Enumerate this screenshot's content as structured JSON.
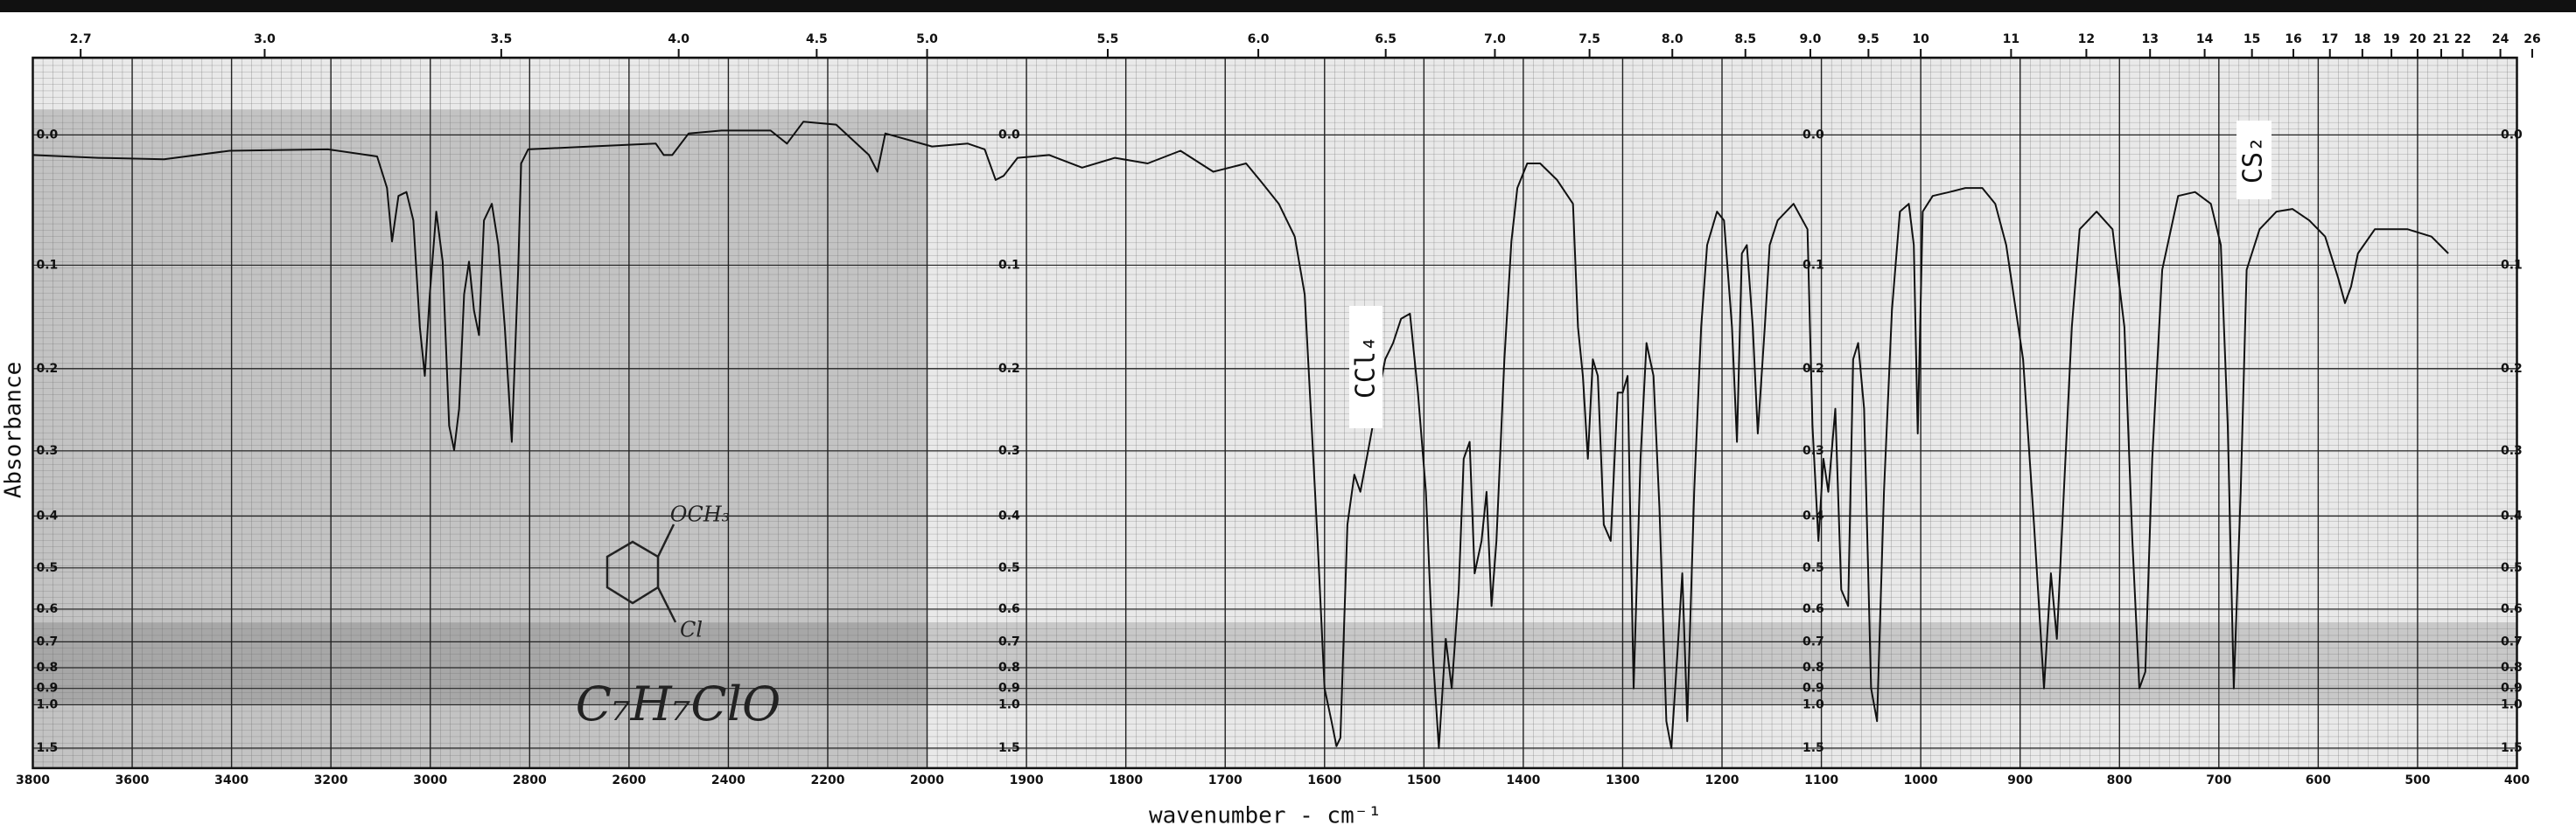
{
  "chart_data": {
    "type": "line",
    "xlabel": "wavenumber - cm⁻¹",
    "ylabel": "Absorbance",
    "yscale": "absorbance",
    "grid": true,
    "annotations": [
      "CCl₄",
      "CS₂",
      "C₇H₇ClO",
      "OCH₃",
      "Cl"
    ],
    "xlim": [
      3800,
      400
    ],
    "xticks": [
      3800,
      3600,
      3400,
      3200,
      3000,
      2800,
      2600,
      2400,
      2200,
      2000,
      1900,
      1800,
      1700,
      1600,
      1500,
      1400,
      1300,
      1200,
      1100,
      1000,
      900,
      800,
      700,
      600,
      500,
      400
    ],
    "x2lim": [
      2.63,
      26
    ],
    "x2ticks": [
      2.7,
      {
        "value": 3,
        "label": "3.0"
      },
      3.5,
      {
        "value": 4,
        "label": "4.0"
      },
      4.5,
      {
        "value": 5,
        "label": "5.0"
      },
      5.5,
      {
        "value": 6,
        "label": "6.0"
      },
      6.5,
      {
        "value": 7,
        "label": "7.0"
      },
      7.5,
      {
        "value": 8,
        "label": "8.0"
      },
      8.5,
      {
        "value": 9,
        "label": "9.0"
      },
      9.5,
      10,
      11,
      12,
      13,
      14,
      15,
      16,
      17,
      18,
      19,
      20,
      21,
      22,
      24,
      26
    ],
    "ylim": [
      -0.05,
      1.5
    ],
    "yticks": [
      {
        "value": 0,
        "label": "0.0"
      },
      0.1,
      0.2,
      0.3,
      0.4,
      0.5,
      0.6,
      0.7,
      0.8,
      0.9,
      {
        "value": 1,
        "label": "1.0"
      },
      1.5
    ],
    "x": [
      3800,
      3668,
      3536,
      3404,
      3206,
      3107,
      3087,
      3077,
      3064,
      3048,
      3034,
      3021,
      3011,
      3001,
      2988,
      2975,
      2962,
      2952,
      2942,
      2932,
      2922,
      2912,
      2902,
      2892,
      2876,
      2863,
      2850,
      2836,
      2823,
      2817,
      2803,
      2678,
      2546,
      2530,
      2513,
      2480,
      2414,
      2315,
      2282,
      2249,
      2183,
      2117,
      2100,
      2084,
      1995,
      1959,
      1942,
      1931,
      1923,
      1909,
      1877,
      1844,
      1811,
      1778,
      1745,
      1712,
      1679,
      1663,
      1646,
      1630,
      1620,
      1613,
      1607,
      1600,
      1593,
      1588,
      1584,
      1577,
      1570,
      1564,
      1556,
      1547,
      1539,
      1531,
      1523,
      1514,
      1506,
      1498,
      1491,
      1485,
      1478,
      1472,
      1465,
      1460,
      1454,
      1449,
      1442,
      1437,
      1432,
      1427,
      1419,
      1412,
      1406,
      1396,
      1383,
      1366,
      1350,
      1345,
      1340,
      1335,
      1330,
      1325,
      1319,
      1312,
      1305,
      1300,
      1295,
      1289,
      1282,
      1276,
      1269,
      1263,
      1256,
      1251,
      1245,
      1240,
      1235,
      1228,
      1221,
      1215,
      1205,
      1198,
      1190,
      1185,
      1180,
      1175,
      1169,
      1164,
      1157,
      1152,
      1144,
      1128,
      1114,
      1109,
      1103,
      1098,
      1093,
      1086,
      1080,
      1073,
      1068,
      1063,
      1057,
      1050,
      1044,
      1037,
      1029,
      1021,
      1012,
      1007,
      1003,
      998,
      988,
      971,
      955,
      938,
      925,
      914,
      897,
      886,
      876,
      869,
      863,
      856,
      848,
      840,
      823,
      807,
      795,
      787,
      780,
      774,
      767,
      757,
      741,
      724,
      708,
      698,
      691,
      685,
      678,
      672,
      659,
      642,
      626,
      609,
      593,
      580,
      573,
      567,
      560,
      543,
      510,
      486,
      469
    ],
    "series": [
      {
        "color": "#111111",
        "values": [
          0.014,
          0.016,
          0.017,
          0.011,
          0.01,
          0.015,
          0.038,
          0.08,
          0.044,
          0.041,
          0.063,
          0.157,
          0.208,
          0.126,
          0.056,
          0.097,
          0.267,
          0.299,
          0.246,
          0.126,
          0.097,
          0.141,
          0.165,
          0.063,
          0.05,
          0.083,
          0.157,
          0.288,
          0.104,
          0.02,
          0.01,
          0.008,
          0.006,
          0.014,
          0.014,
          -0.001,
          -0.003,
          -0.003,
          0.006,
          -0.009,
          -0.007,
          0.014,
          0.026,
          -0.001,
          0.008,
          0.006,
          0.01,
          0.032,
          0.029,
          0.016,
          0.014,
          0.023,
          0.016,
          0.02,
          0.011,
          0.026,
          0.02,
          0.034,
          0.05,
          0.076,
          0.126,
          0.267,
          0.445,
          0.9,
          1.13,
          1.46,
          1.32,
          0.415,
          0.334,
          0.36,
          0.299,
          0.237,
          0.19,
          0.173,
          0.149,
          0.144,
          0.227,
          0.36,
          0.75,
          1.5,
          0.69,
          0.9,
          0.55,
          0.311,
          0.288,
          0.512,
          0.445,
          0.36,
          0.592,
          0.445,
          0.19,
          0.08,
          0.038,
          0.02,
          0.02,
          0.032,
          0.05,
          0.157,
          0.208,
          0.311,
          0.19,
          0.208,
          0.415,
          0.445,
          0.227,
          0.227,
          0.208,
          0.9,
          0.311,
          0.173,
          0.208,
          0.386,
          1.13,
          1.5,
          0.75,
          0.512,
          1.13,
          0.36,
          0.157,
          0.083,
          0.056,
          0.063,
          0.157,
          0.288,
          0.09,
          0.083,
          0.157,
          0.277,
          0.157,
          0.083,
          0.063,
          0.05,
          0.07,
          0.267,
          0.445,
          0.311,
          0.36,
          0.246,
          0.55,
          0.592,
          0.19,
          0.173,
          0.246,
          0.9,
          1.13,
          0.36,
          0.141,
          0.056,
          0.05,
          0.083,
          0.277,
          0.056,
          0.044,
          0.041,
          0.038,
          0.038,
          0.05,
          0.083,
          0.19,
          0.415,
          0.9,
          0.512,
          0.69,
          0.36,
          0.157,
          0.07,
          0.056,
          0.07,
          0.157,
          0.445,
          0.9,
          0.818,
          0.311,
          0.104,
          0.044,
          0.041,
          0.05,
          0.083,
          0.267,
          0.9,
          0.36,
          0.104,
          0.07,
          0.056,
          0.054,
          0.063,
          0.076,
          0.111,
          0.134,
          0.119,
          0.09,
          0.07,
          0.07,
          0.076,
          0.09
        ]
      }
    ]
  }
}
